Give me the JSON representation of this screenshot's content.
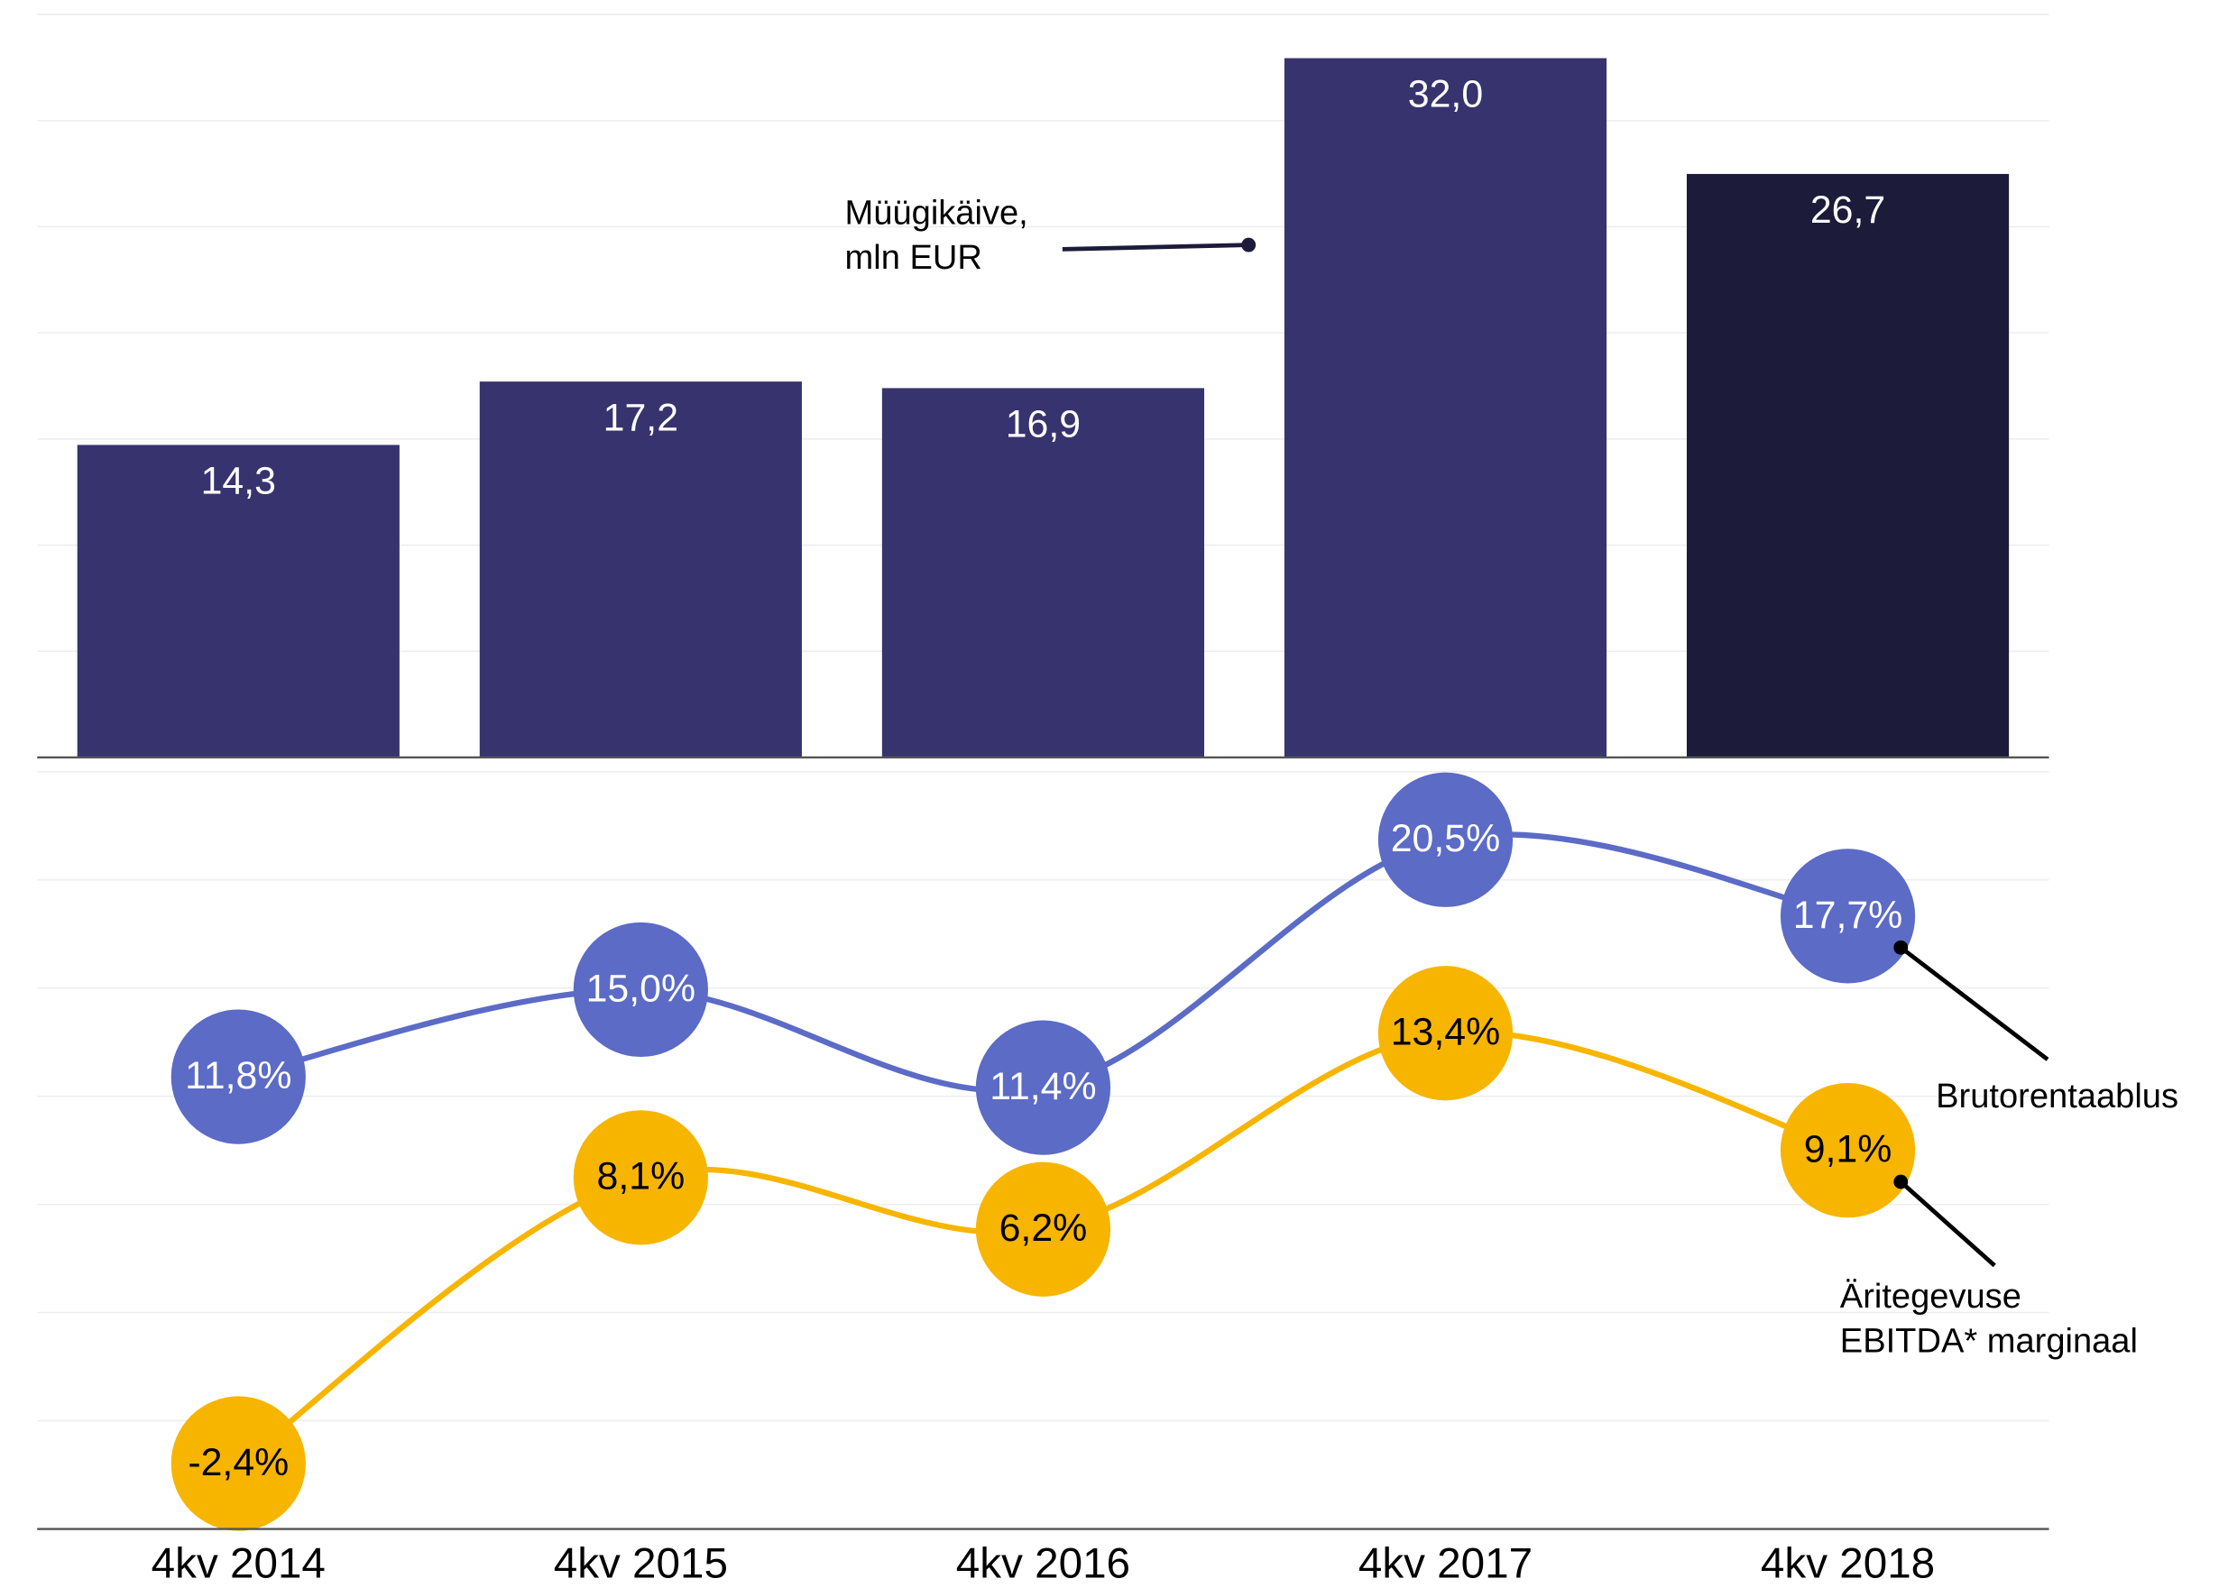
{
  "chart_data": {
    "type": "bar",
    "categories": [
      "4kv 2014",
      "4kv 2015",
      "4kv 2016",
      "4kv 2017",
      "4kv 2018"
    ],
    "ylim": [
      0,
      34
    ],
    "y2lim": [
      -4.8,
      23
    ],
    "grid": true,
    "series": [
      {
        "name": "Müügikäive, mln EUR",
        "type": "bar",
        "colors": [
          "#37336e",
          "#37336e",
          "#37336e",
          "#37336e",
          "#1c1b3a"
        ],
        "values": [
          14.3,
          17.2,
          16.9,
          32.0,
          26.7
        ],
        "value_labels": [
          "14,3",
          "17,2",
          "16,9",
          "32,0",
          "26,7"
        ]
      },
      {
        "name": "Brutorentaablus",
        "type": "line",
        "axis": "y2",
        "color": "#5b6bc6",
        "values": [
          11.8,
          15.0,
          11.4,
          20.5,
          17.7
        ],
        "value_labels": [
          "11,8%",
          "15,0%",
          "11,4%",
          "20,5%",
          "17,7%"
        ]
      },
      {
        "name": "Äritegevuse EBITDA* marginaal",
        "type": "line",
        "axis": "y2",
        "color": "#f7b500",
        "values": [
          -2.4,
          8.1,
          6.2,
          13.4,
          9.1
        ],
        "value_labels": [
          "-2,4%",
          "8,1%",
          "6,2%",
          "13,4%",
          "9,1%"
        ]
      }
    ]
  }
}
